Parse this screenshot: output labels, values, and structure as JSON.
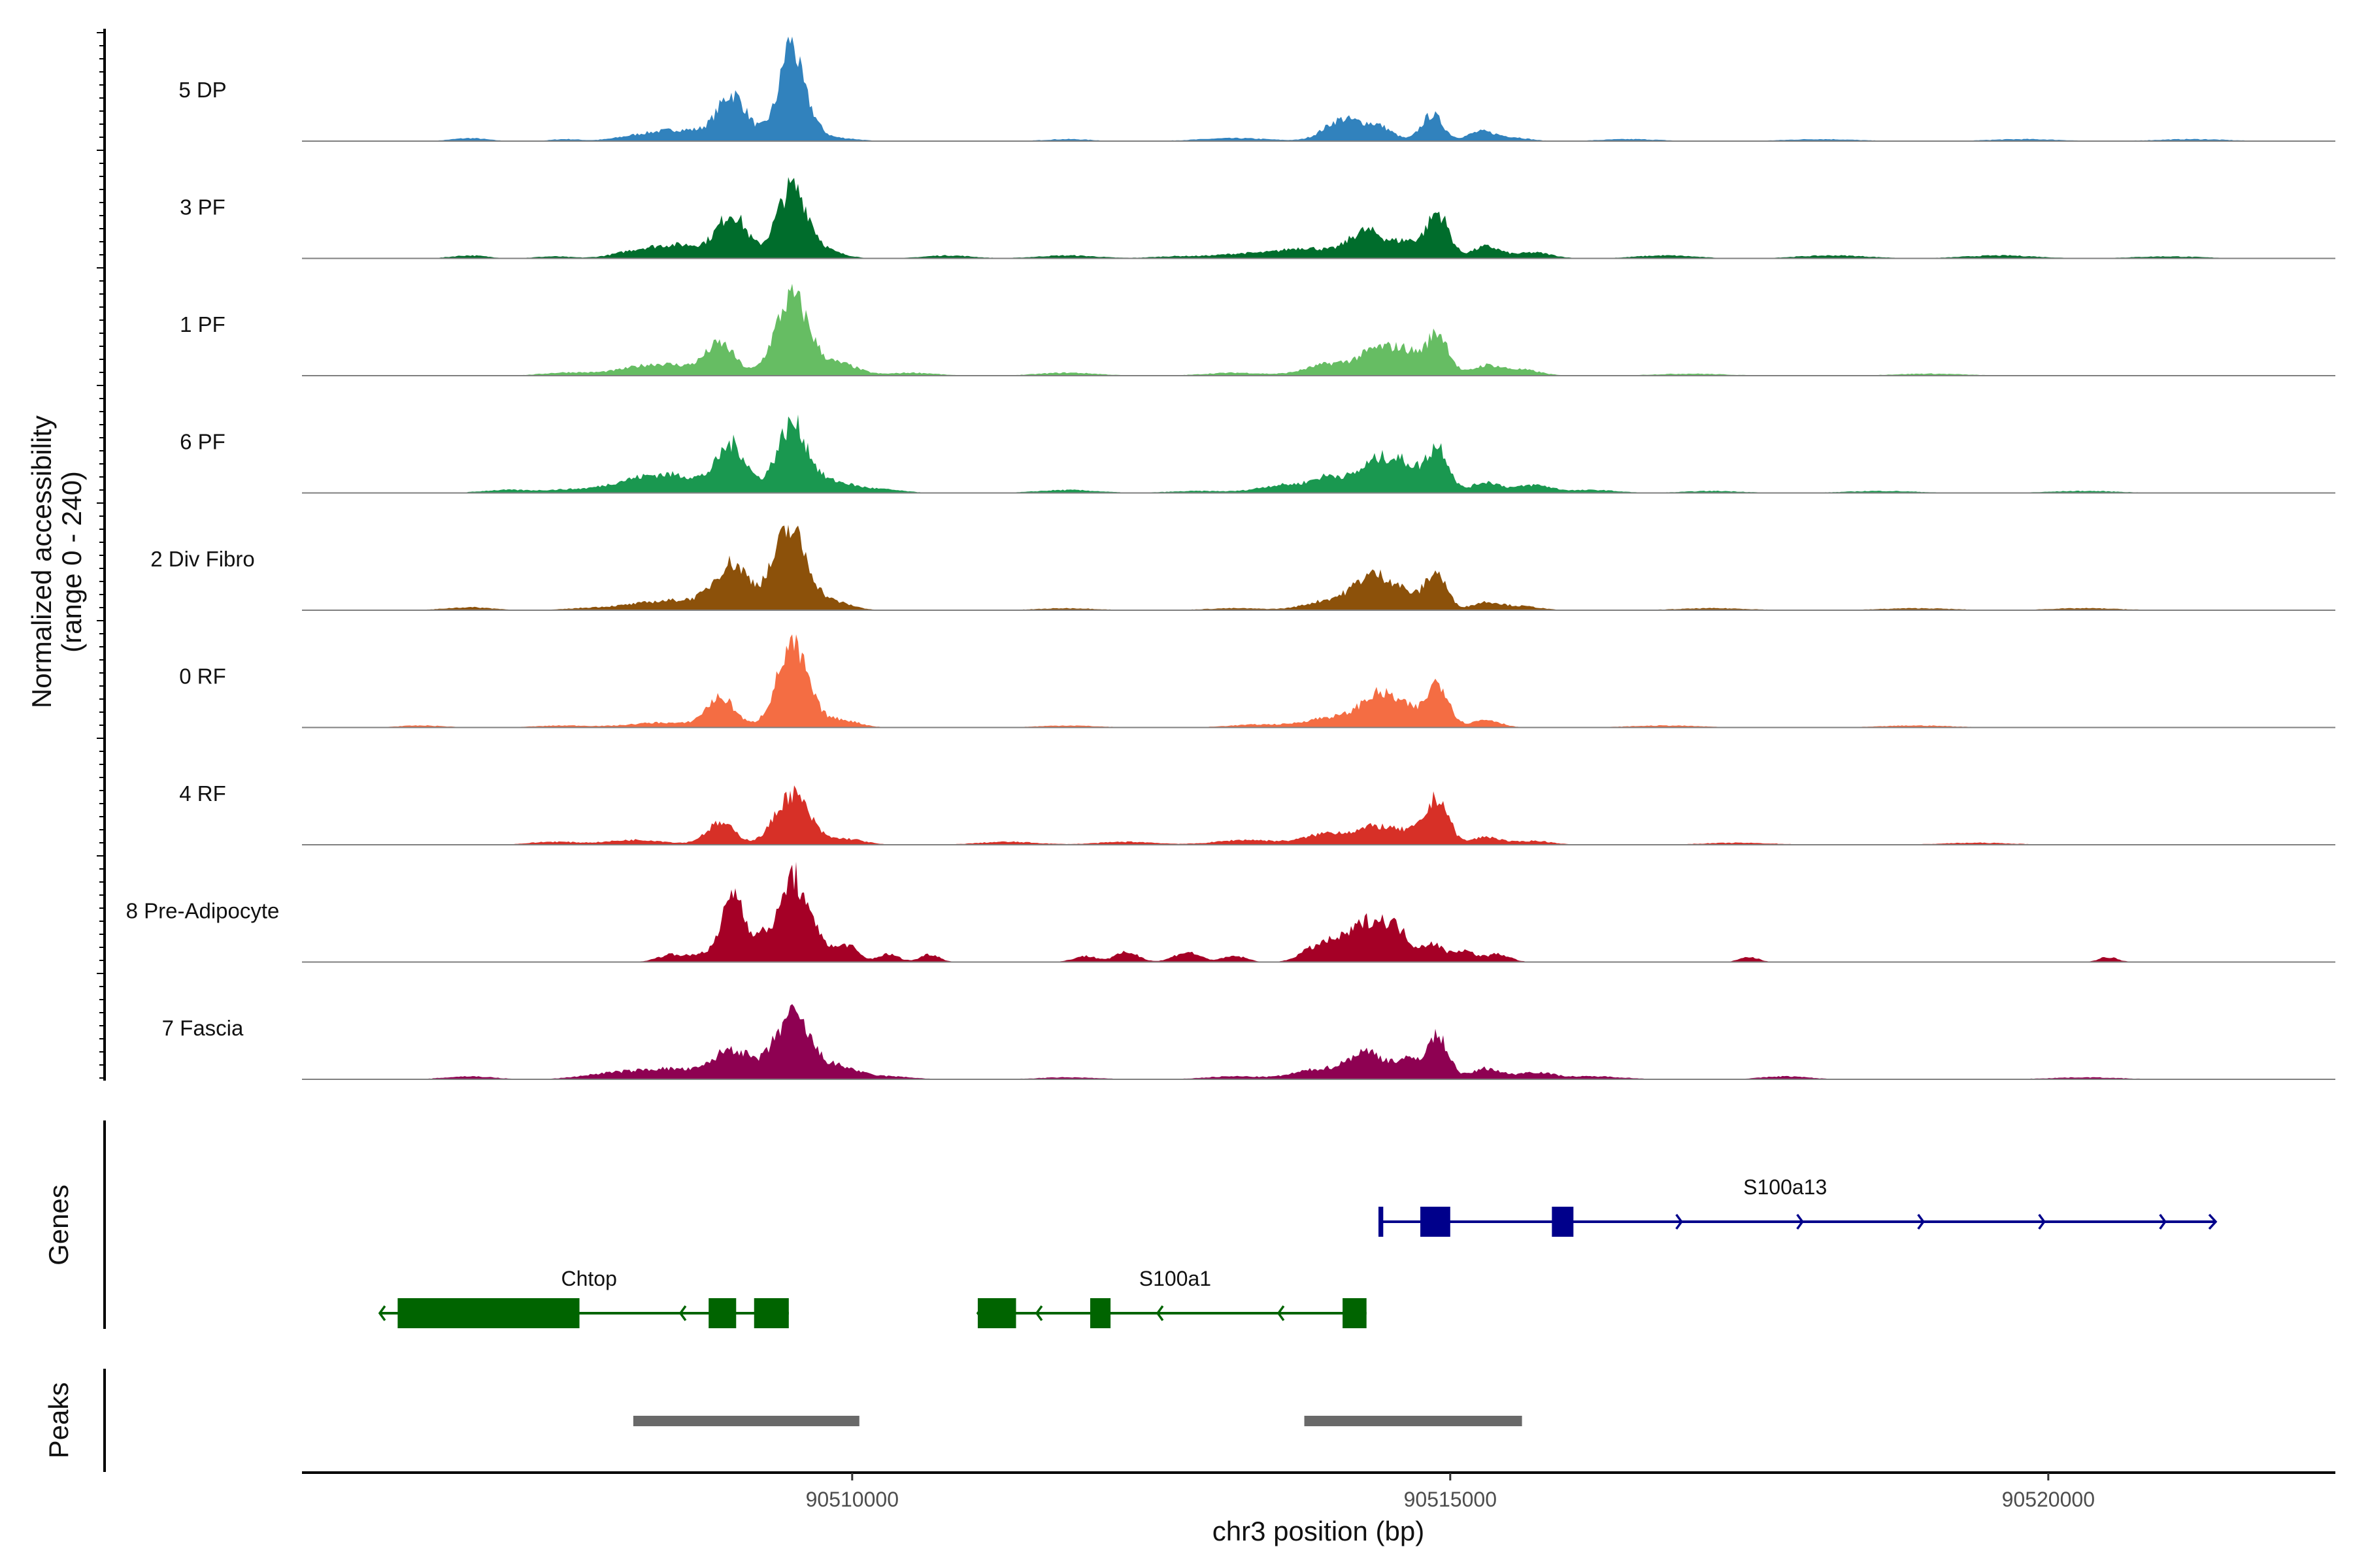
{
  "chart_data": {
    "type": "area",
    "title": "",
    "ylabel_line1": "Normalized accessibility",
    "ylabel_line2": "(range 0 - 240)",
    "xlabel": "chr3 position (bp)",
    "genes_label": "Genes",
    "peaks_label": "Peaks",
    "chromosome": "chr3",
    "xlim": [
      90505400,
      90522400
    ],
    "ylim": [
      0,
      240
    ],
    "x_ticks": [
      {
        "value": 90510000,
        "label": "90510000"
      },
      {
        "value": 90515000,
        "label": "90515000"
      },
      {
        "value": 90520000,
        "label": "90520000"
      }
    ],
    "tracks": [
      {
        "name": "5 DP",
        "color": "#3182bd",
        "peaks": [
          [
            90506800,
            3,
            150
          ],
          [
            90507600,
            2,
            120
          ],
          [
            90508200,
            4,
            200
          ],
          [
            90508600,
            11,
            250
          ],
          [
            90509000,
            45,
            120
          ],
          [
            90509500,
            72,
            130
          ],
          [
            90509480,
            35,
            50
          ],
          [
            90509900,
            3,
            150
          ],
          [
            90511800,
            2,
            200
          ],
          [
            90513200,
            3,
            300
          ],
          [
            90514100,
            22,
            150
          ],
          [
            90514400,
            14,
            120
          ],
          [
            90514850,
            27,
            90
          ],
          [
            90515250,
            9,
            110
          ],
          [
            90515500,
            4,
            150
          ],
          [
            90516500,
            2,
            250
          ],
          [
            90518100,
            2,
            300
          ],
          [
            90519800,
            2,
            300
          ],
          [
            90521200,
            2,
            300
          ]
        ]
      },
      {
        "name": "3 PF",
        "color": "#006d2c",
        "peaks": [
          [
            90506800,
            3,
            150
          ],
          [
            90507500,
            2,
            150
          ],
          [
            90508200,
            6,
            200
          ],
          [
            90508600,
            13,
            250
          ],
          [
            90509000,
            42,
            120
          ],
          [
            90509500,
            72,
            130
          ],
          [
            90509800,
            6,
            150
          ],
          [
            90510800,
            3,
            200
          ],
          [
            90511800,
            3,
            250
          ],
          [
            90512700,
            2,
            200
          ],
          [
            90513300,
            5,
            250
          ],
          [
            90513800,
            10,
            200
          ],
          [
            90514300,
            28,
            150
          ],
          [
            90514650,
            16,
            120
          ],
          [
            90514900,
            45,
            90
          ],
          [
            90515300,
            12,
            120
          ],
          [
            90515700,
            6,
            150
          ],
          [
            90516800,
            3,
            250
          ],
          [
            90518200,
            3,
            300
          ],
          [
            90519600,
            3,
            300
          ],
          [
            90521000,
            2,
            300
          ]
        ]
      },
      {
        "name": "1 PF",
        "color": "#66bd63",
        "peaks": [
          [
            90507600,
            3,
            200
          ],
          [
            90508400,
            12,
            300
          ],
          [
            90508900,
            30,
            120
          ],
          [
            90509500,
            80,
            140
          ],
          [
            90509900,
            12,
            150
          ],
          [
            90510500,
            3,
            200
          ],
          [
            90511800,
            3,
            250
          ],
          [
            90513200,
            3,
            250
          ],
          [
            90514000,
            12,
            200
          ],
          [
            90514400,
            25,
            150
          ],
          [
            90514650,
            20,
            120
          ],
          [
            90514900,
            42,
            90
          ],
          [
            90515300,
            10,
            120
          ],
          [
            90515600,
            6,
            150
          ],
          [
            90517000,
            2,
            300
          ],
          [
            90519000,
            2,
            300
          ]
        ]
      },
      {
        "name": "6 PF",
        "color": "#1a9850",
        "peaks": [
          [
            90507100,
            3,
            200
          ],
          [
            90507600,
            3,
            200
          ],
          [
            90508200,
            12,
            250
          ],
          [
            90508600,
            14,
            250
          ],
          [
            90509000,
            46,
            120
          ],
          [
            90509500,
            70,
            130
          ],
          [
            90509850,
            10,
            150
          ],
          [
            90510200,
            4,
            200
          ],
          [
            90511800,
            3,
            250
          ],
          [
            90512900,
            2,
            250
          ],
          [
            90513600,
            8,
            200
          ],
          [
            90514000,
            16,
            150
          ],
          [
            90514400,
            33,
            150
          ],
          [
            90514650,
            22,
            120
          ],
          [
            90514900,
            46,
            90
          ],
          [
            90515300,
            11,
            120
          ],
          [
            90515700,
            8,
            150
          ],
          [
            90516200,
            3,
            200
          ],
          [
            90517200,
            2,
            250
          ],
          [
            90518600,
            2,
            300
          ],
          [
            90520300,
            2,
            300
          ]
        ]
      },
      {
        "name": "2 Div Fibro",
        "color": "#8c510a",
        "peaks": [
          [
            90506800,
            3,
            200
          ],
          [
            90507800,
            2,
            200
          ],
          [
            90508300,
            6,
            250
          ],
          [
            90508700,
            8,
            250
          ],
          [
            90509000,
            44,
            140
          ],
          [
            90509480,
            82,
            140
          ],
          [
            90509850,
            8,
            150
          ],
          [
            90511800,
            2,
            250
          ],
          [
            90513200,
            2,
            250
          ],
          [
            90514000,
            10,
            200
          ],
          [
            90514350,
            33,
            150
          ],
          [
            90514600,
            15,
            120
          ],
          [
            90514880,
            38,
            90
          ],
          [
            90515300,
            8,
            120
          ],
          [
            90515600,
            4,
            150
          ],
          [
            90517200,
            2,
            300
          ],
          [
            90518900,
            2,
            300
          ],
          [
            90520300,
            2,
            300
          ]
        ]
      },
      {
        "name": "0 RF",
        "color": "#f46d43",
        "peaks": [
          [
            90506400,
            2,
            200
          ],
          [
            90507600,
            2,
            250
          ],
          [
            90508400,
            5,
            250
          ],
          [
            90508900,
            30,
            120
          ],
          [
            90509500,
            82,
            130
          ],
          [
            90509900,
            8,
            150
          ],
          [
            90511800,
            2,
            250
          ],
          [
            90513400,
            3,
            250
          ],
          [
            90514000,
            10,
            200
          ],
          [
            90514400,
            32,
            150
          ],
          [
            90514650,
            14,
            120
          ],
          [
            90514900,
            45,
            90
          ],
          [
            90515300,
            8,
            120
          ],
          [
            90516800,
            2,
            300
          ],
          [
            90518900,
            2,
            300
          ]
        ]
      },
      {
        "name": "4 RF",
        "color": "#d73027",
        "peaks": [
          [
            90507500,
            3,
            200
          ],
          [
            90508200,
            5,
            250
          ],
          [
            90508900,
            22,
            120
          ],
          [
            90509500,
            52,
            140
          ],
          [
            90509950,
            6,
            150
          ],
          [
            90511300,
            3,
            250
          ],
          [
            90512300,
            3,
            250
          ],
          [
            90513300,
            5,
            250
          ],
          [
            90514000,
            12,
            200
          ],
          [
            90514400,
            17,
            150
          ],
          [
            90514700,
            12,
            120
          ],
          [
            90514900,
            45,
            90
          ],
          [
            90515300,
            8,
            120
          ],
          [
            90515700,
            4,
            150
          ],
          [
            90517400,
            2,
            300
          ],
          [
            90519400,
            2,
            300
          ]
        ]
      },
      {
        "name": "8 Pre-Adipocyte",
        "color": "#a50026",
        "peaks": [
          [
            90508500,
            8,
            120
          ],
          [
            90508800,
            10,
            100
          ],
          [
            90509000,
            68,
            80
          ],
          [
            90509150,
            20,
            80
          ],
          [
            90509300,
            25,
            70
          ],
          [
            90509500,
            88,
            90
          ],
          [
            90509700,
            30,
            80
          ],
          [
            90509950,
            18,
            90
          ],
          [
            90510300,
            8,
            90
          ],
          [
            90510650,
            8,
            80
          ],
          [
            90511950,
            6,
            100
          ],
          [
            90512300,
            10,
            100
          ],
          [
            90512800,
            10,
            110
          ],
          [
            90513200,
            6,
            100
          ],
          [
            90513800,
            8,
            100
          ],
          [
            90514000,
            18,
            120
          ],
          [
            90514300,
            38,
            140
          ],
          [
            90514550,
            30,
            120
          ],
          [
            90514850,
            18,
            80
          ],
          [
            90515100,
            12,
            100
          ],
          [
            90515400,
            8,
            100
          ],
          [
            90517500,
            5,
            80
          ],
          [
            90520500,
            5,
            80
          ]
        ]
      },
      {
        "name": "7 Fascia",
        "color": "#8e0152",
        "peaks": [
          [
            90506800,
            3,
            200
          ],
          [
            90508000,
            6,
            250
          ],
          [
            90508500,
            10,
            250
          ],
          [
            90509000,
            30,
            150
          ],
          [
            90509500,
            65,
            150
          ],
          [
            90509900,
            12,
            150
          ],
          [
            90510300,
            3,
            200
          ],
          [
            90511800,
            2,
            250
          ],
          [
            90513200,
            3,
            250
          ],
          [
            90513900,
            10,
            200
          ],
          [
            90514300,
            27,
            150
          ],
          [
            90514650,
            18,
            120
          ],
          [
            90514900,
            42,
            90
          ],
          [
            90515300,
            11,
            120
          ],
          [
            90515700,
            7,
            150
          ],
          [
            90516200,
            3,
            250
          ],
          [
            90517800,
            3,
            200
          ],
          [
            90520300,
            2,
            300
          ]
        ]
      }
    ],
    "genes": [
      {
        "name": "S100a13",
        "strand": "+",
        "color": "#00008b",
        "start": 90514420,
        "end": 90521400,
        "row": 1,
        "exons": [
          [
            90514400,
            90514440
          ],
          [
            90514750,
            90515000
          ],
          [
            90515850,
            90516030
          ]
        ],
        "label_x": 90517800
      },
      {
        "name": "Chtop",
        "strand": "-",
        "color": "#006400",
        "start": 90506050,
        "end": 90509470,
        "row": 2,
        "exons": [
          [
            90506200,
            90507720
          ],
          [
            90508800,
            90509030
          ],
          [
            90509180,
            90509470
          ]
        ],
        "label_x": 90507800
      },
      {
        "name": "S100a1",
        "strand": "-",
        "color": "#006400",
        "start": 90511050,
        "end": 90514300,
        "row": 2,
        "exons": [
          [
            90511050,
            90511370
          ],
          [
            90511990,
            90512160
          ],
          [
            90514100,
            90514300
          ]
        ],
        "label_x": 90512700
      }
    ],
    "peak_regions": [
      {
        "start": 90508170,
        "end": 90510060,
        "color": "#696969"
      },
      {
        "start": 90513780,
        "end": 90515600,
        "color": "#696969"
      }
    ]
  }
}
